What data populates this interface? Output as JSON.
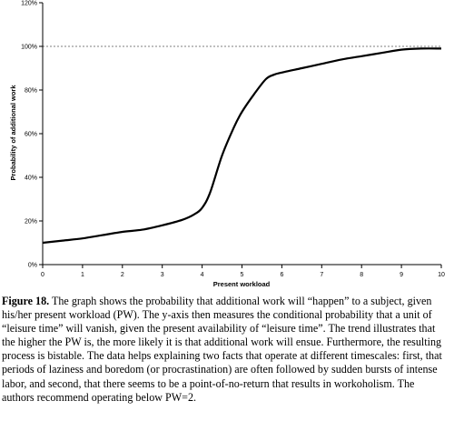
{
  "chart_data": {
    "type": "line",
    "title": "",
    "xlabel": "Present workload",
    "ylabel": "Probability of additional work",
    "xlim": [
      0,
      10
    ],
    "ylim": [
      0,
      120
    ],
    "x_ticks": [
      "0",
      "1",
      "2",
      "3",
      "4",
      "5",
      "6",
      "7",
      "8",
      "9",
      "10"
    ],
    "y_ticks": [
      "0%",
      "20%",
      "40%",
      "60%",
      "80%",
      "100%",
      "120%"
    ],
    "grid": false,
    "reference_line": {
      "y": 100,
      "style": "dashed"
    },
    "series": [
      {
        "x": [
          0,
          0.5,
          1,
          1.5,
          2,
          2.5,
          3,
          3.5,
          3.8,
          4.0,
          4.2,
          4.5,
          4.8,
          5.0,
          5.3,
          5.6,
          5.8,
          6.0,
          6.5,
          7.0,
          7.5,
          8.0,
          8.5,
          9.0,
          9.5,
          10.0
        ],
        "y": [
          10,
          11,
          12,
          13.5,
          15,
          16,
          18,
          20.5,
          23,
          26,
          33,
          50,
          63,
          70,
          78,
          85,
          87,
          88,
          90,
          92,
          94,
          95.5,
          97,
          98.5,
          99,
          99
        ]
      }
    ]
  },
  "caption": {
    "label": "Figure 18.",
    "text": " The graph shows the probability that additional work will “happen” to a subject, given his/her present workload (PW). The y-axis then measures the conditional probability that a unit of “leisure time” will vanish, given the present availability of “leisure time”.  The trend illustrates that the higher the PW is, the more likely it is that additional work will ensue. Furthermore, the resulting process is bistable. The data helps explaining two facts that operate at different timescales: first, that periods of laziness and boredom (or procrastination) are often followed by sudden bursts of intense labor, and second, that there seems to be a point-of-no-return that results in workoholism. The authors recommend operating below PW=2."
  }
}
